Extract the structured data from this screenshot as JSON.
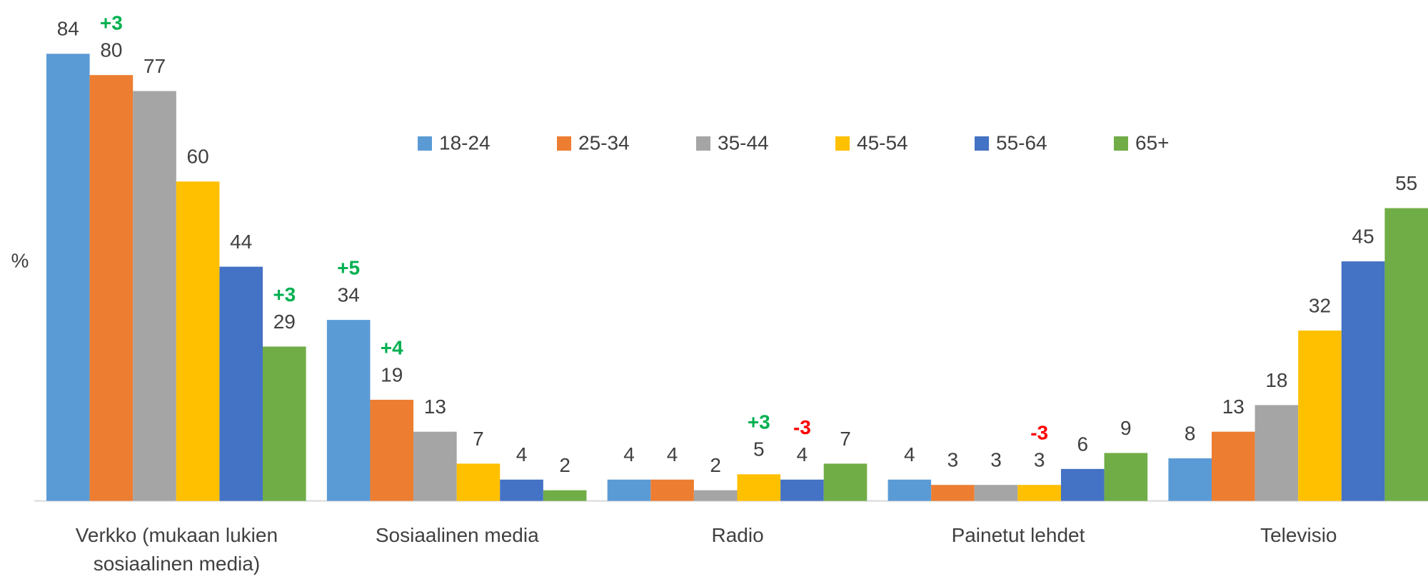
{
  "chart_data": {
    "type": "bar",
    "y_label": "%",
    "categories": [
      "Verkko (mukaan lukien sosiaalinen media)",
      "Sosiaalinen media",
      "Radio",
      "Painetut lehdet",
      "Televisio"
    ],
    "series": [
      {
        "name": "18-24",
        "color": "#5b9bd5",
        "values": [
          84,
          34,
          4,
          4,
          8
        ],
        "changes": [
          null,
          "+5",
          null,
          null,
          null
        ]
      },
      {
        "name": "25-34",
        "color": "#ed7d31",
        "values": [
          80,
          19,
          4,
          3,
          13
        ],
        "changes": [
          "+3",
          "+4",
          null,
          null,
          null
        ]
      },
      {
        "name": "35-44",
        "color": "#a5a5a5",
        "values": [
          77,
          13,
          2,
          3,
          18
        ],
        "changes": [
          null,
          null,
          null,
          null,
          null
        ]
      },
      {
        "name": "45-54",
        "color": "#ffc000",
        "values": [
          60,
          7,
          5,
          3,
          32
        ],
        "changes": [
          null,
          null,
          "+3",
          "-3",
          null
        ]
      },
      {
        "name": "55-64",
        "color": "#4472c4",
        "values": [
          44,
          4,
          4,
          6,
          45
        ],
        "changes": [
          null,
          null,
          "-3",
          null,
          null
        ]
      },
      {
        "name": "65+",
        "color": "#70ad47",
        "values": [
          29,
          2,
          7,
          9,
          55
        ],
        "changes": [
          "+3",
          null,
          null,
          null,
          null
        ]
      }
    ],
    "increase_color": "#00b050",
    "decrease_color": "#ff0000",
    "ylim": [
      0,
      90
    ],
    "legend": "top"
  }
}
